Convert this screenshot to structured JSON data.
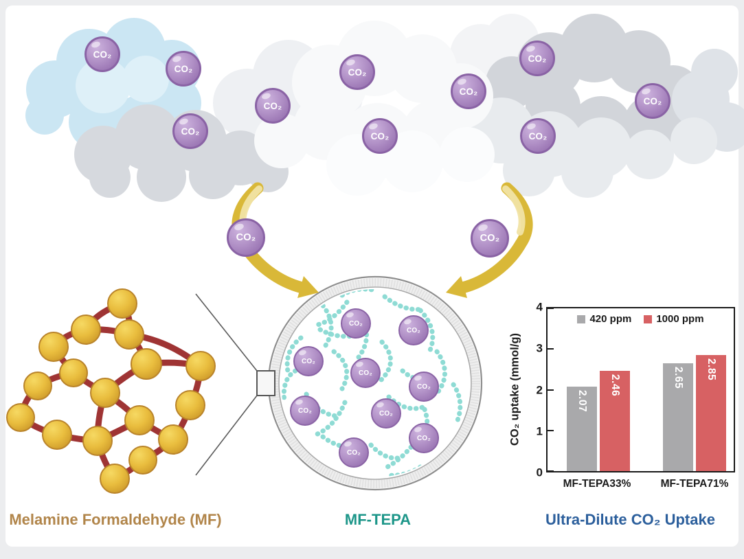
{
  "labels": {
    "co2": "CO₂",
    "mf": "Melamine Formaldehyde (MF)",
    "mftepa": "MF-TEPA",
    "chart_title": "Ultra-Dilute CO₂ Uptake"
  },
  "palette": {
    "mf_label": "#b1854a",
    "mftepa_label": "#1d9689",
    "title_blue": "#2c5f9c",
    "sphere_border": "#8a63a5",
    "chain_teal": "#8edbd4",
    "arrow_gold": "#d9b838",
    "arrow_gold_light": "#f1e3a4",
    "mf_link": "#9f3434",
    "cloud_blue": "#cbe6f3"
  },
  "chart_data": {
    "type": "bar",
    "categories": [
      "MF-TEPA33%",
      "MF-TEPA71%"
    ],
    "series": [
      {
        "name": "420 ppm",
        "color": "#a9a9ab",
        "values": [
          2.07,
          2.65
        ]
      },
      {
        "name": "1000 ppm",
        "color": "#d76163",
        "values": [
          2.46,
          2.85
        ]
      }
    ],
    "title": "Ultra-Dilute CO₂ Uptake",
    "xlabel": "",
    "ylabel": "CO₂ uptake (mmol/g)",
    "ylim": [
      0,
      4
    ],
    "yticks": [
      0,
      1,
      2,
      3,
      4
    ],
    "grid": false,
    "legend_position": "top-inside",
    "value_label_format": "2-decimals, white, rotated 90° inside bar"
  }
}
